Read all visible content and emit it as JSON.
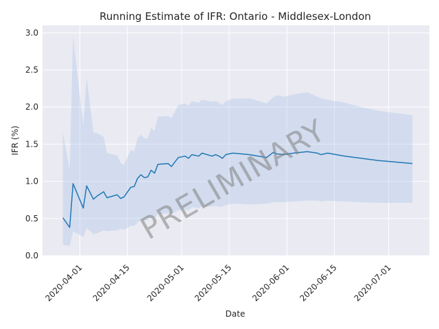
{
  "chart_data": {
    "type": "line",
    "title": "Running Estimate of IFR: Ontario - Middlesex-London",
    "xlabel": "Date",
    "ylabel": "IFR (%)",
    "watermark": "PRELIMINARY",
    "xlim": [
      "2020-03-21",
      "2020-07-13"
    ],
    "ylim": [
      0,
      3.1
    ],
    "y_ticks": [
      0.0,
      0.5,
      1.0,
      1.5,
      2.0,
      2.5,
      3.0
    ],
    "y_tick_labels": [
      "0.0",
      "0.5",
      "1.0",
      "1.5",
      "2.0",
      "2.5",
      "3.0"
    ],
    "x_ticks": [
      "2020-04-01",
      "2020-04-15",
      "2020-05-01",
      "2020-05-15",
      "2020-06-01",
      "2020-06-15",
      "2020-07-01"
    ],
    "grid": true,
    "colors": {
      "line": "#1f77b4",
      "band": "#aec7e8",
      "background": "#eaeaf2",
      "grid": "#ffffff"
    },
    "series": [
      {
        "x": [
          "2020-03-27",
          "2020-03-29",
          "2020-03-30",
          "2020-04-02",
          "2020-04-03",
          "2020-04-05",
          "2020-04-06",
          "2020-04-08",
          "2020-04-09",
          "2020-04-12",
          "2020-04-13",
          "2020-04-14",
          "2020-04-16",
          "2020-04-17",
          "2020-04-18",
          "2020-04-19",
          "2020-04-20",
          "2020-04-21",
          "2020-04-22",
          "2020-04-23",
          "2020-04-24",
          "2020-04-27",
          "2020-04-28",
          "2020-04-30",
          "2020-05-01",
          "2020-05-02",
          "2020-05-03",
          "2020-05-04",
          "2020-05-06",
          "2020-05-07",
          "2020-05-10",
          "2020-05-11",
          "2020-05-12",
          "2020-05-13",
          "2020-05-14",
          "2020-05-16",
          "2020-05-21",
          "2020-05-26",
          "2020-05-28",
          "2020-05-29",
          "2020-05-31",
          "2020-06-03",
          "2020-06-07",
          "2020-06-10",
          "2020-06-11",
          "2020-06-13",
          "2020-06-18",
          "2020-06-23",
          "2020-06-28",
          "2020-07-03",
          "2020-07-08"
        ],
        "y": [
          0.51,
          0.38,
          0.97,
          0.64,
          0.94,
          0.76,
          0.8,
          0.86,
          0.78,
          0.82,
          0.77,
          0.79,
          0.92,
          0.93,
          1.04,
          1.09,
          1.05,
          1.06,
          1.15,
          1.11,
          1.23,
          1.24,
          1.2,
          1.32,
          1.33,
          1.34,
          1.31,
          1.36,
          1.34,
          1.38,
          1.34,
          1.36,
          1.34,
          1.31,
          1.36,
          1.38,
          1.36,
          1.32,
          1.39,
          1.37,
          1.36,
          1.38,
          1.4,
          1.38,
          1.36,
          1.38,
          1.34,
          1.31,
          1.28,
          1.26,
          1.24
        ],
        "lower": [
          0.15,
          0.13,
          0.33,
          0.25,
          0.37,
          0.29,
          0.3,
          0.34,
          0.33,
          0.34,
          0.36,
          0.35,
          0.4,
          0.4,
          0.44,
          0.49,
          0.47,
          0.48,
          0.52,
          0.51,
          0.56,
          0.57,
          0.56,
          0.61,
          0.62,
          0.62,
          0.61,
          0.65,
          0.64,
          0.66,
          0.66,
          0.67,
          0.66,
          0.66,
          0.68,
          0.7,
          0.69,
          0.7,
          0.72,
          0.72,
          0.72,
          0.73,
          0.74,
          0.74,
          0.73,
          0.74,
          0.73,
          0.72,
          0.71,
          0.71,
          0.71
        ],
        "upper": [
          1.66,
          1.15,
          2.95,
          1.75,
          2.4,
          1.66,
          1.65,
          1.6,
          1.38,
          1.35,
          1.25,
          1.22,
          1.42,
          1.4,
          1.58,
          1.63,
          1.58,
          1.58,
          1.72,
          1.68,
          1.87,
          1.88,
          1.85,
          2.03,
          2.04,
          2.05,
          2.02,
          2.08,
          2.06,
          2.1,
          2.07,
          2.08,
          2.06,
          2.03,
          2.08,
          2.11,
          2.12,
          2.05,
          2.13,
          2.16,
          2.14,
          2.17,
          2.2,
          2.14,
          2.12,
          2.1,
          2.06,
          2.0,
          1.95,
          1.92,
          1.89
        ]
      }
    ]
  }
}
